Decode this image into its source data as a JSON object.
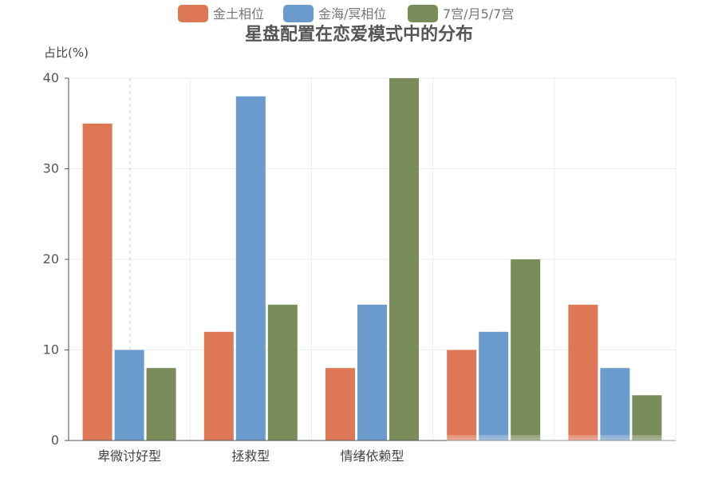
{
  "chart_data": {
    "type": "bar",
    "title": "星盘配置在恋爱模式中的分布",
    "ylabel": "占比(%)",
    "xlabel": "",
    "categories": [
      "卑微讨好型",
      "拯救型",
      "情绪依赖型",
      "",
      ""
    ],
    "series": [
      {
        "name": "金土相位",
        "color": "#dd7755",
        "values": [
          35,
          12,
          8,
          10,
          15
        ]
      },
      {
        "name": "金海/冥相位",
        "color": "#6b9bcc",
        "values": [
          10,
          38,
          15,
          12,
          8
        ]
      },
      {
        "name": "7宫/月5/7宫",
        "color": "#7a8c5a",
        "values": [
          8,
          15,
          40,
          20,
          5
        ]
      }
    ],
    "ylim": [
      0,
      40
    ],
    "yticks": [
      0,
      10,
      20,
      30,
      40
    ],
    "grid": true,
    "legend": "top-center"
  }
}
